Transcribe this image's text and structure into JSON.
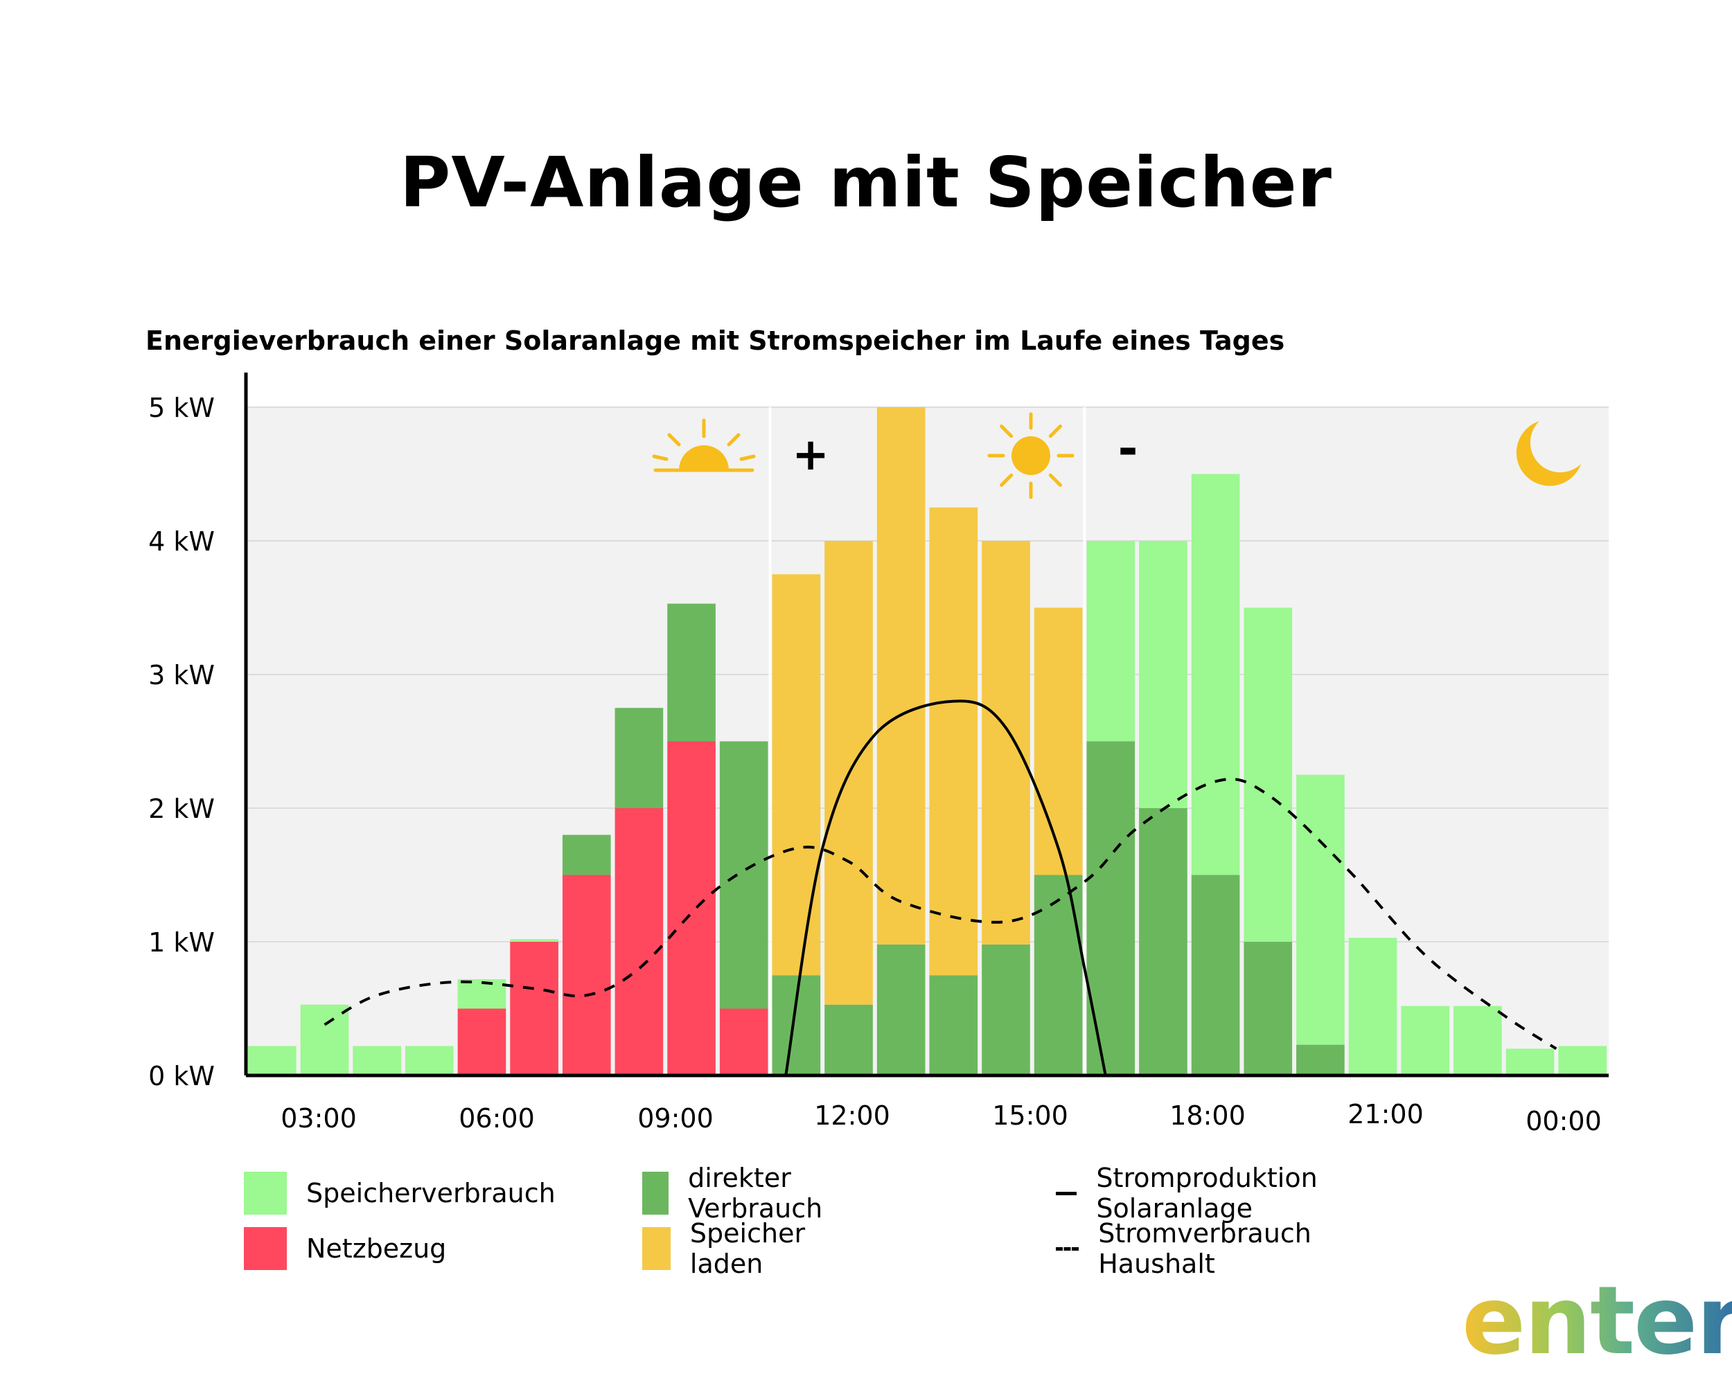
{
  "title": "PV-Anlage mit Speicher",
  "subtitle": "Energieverbrauch einer Solaranlage mit Stromspeicher im Laufe eines Tages",
  "colors": {
    "speicherverbrauch": "#9cf891",
    "netzbezug": "#ff485e",
    "direkter_verbrauch": "#6bb75e",
    "speicher_laden": "#f5c946",
    "plot_bg": "#f2f2f2",
    "icon": "#f6bd1c"
  },
  "icons": [
    "sunrise-icon",
    "sun-icon",
    "moon-icon"
  ],
  "markers": {
    "plus": "+",
    "minus": "-"
  },
  "chart_data": {
    "type": "bar",
    "stacked": true,
    "y_ticks": [
      "0 kW",
      "1 kW",
      "2 kW",
      "3 kW",
      "4 kW",
      "5 kW"
    ],
    "ylim": [
      0,
      5
    ],
    "x_ticks": [
      "03:00",
      "06:00",
      "09:00",
      "12:00",
      "15:00",
      "18:00",
      "21:00",
      "00:00"
    ],
    "bar_count": 26,
    "series": [
      {
        "name": "Netzbezug",
        "key": "netzbezug",
        "values": [
          0,
          0,
          0,
          0,
          0.5,
          1.0,
          1.5,
          2.0,
          2.5,
          0.5,
          0,
          0,
          0,
          0,
          0,
          0,
          0,
          0,
          0,
          0,
          0,
          0,
          0,
          0,
          0,
          0
        ]
      },
      {
        "name": "direkter Verbrauch",
        "key": "direkter_verbrauch",
        "values": [
          0,
          0,
          0,
          0,
          0,
          0,
          0.3,
          0.75,
          1.03,
          2.0,
          0.75,
          0.53,
          0.98,
          0.75,
          0.98,
          1.5,
          2.5,
          2.0,
          1.5,
          1.0,
          0.23,
          0,
          0,
          0,
          0,
          0
        ]
      },
      {
        "name": "Speicher laden",
        "key": "speicher_laden",
        "values": [
          0,
          0,
          0,
          0,
          0,
          0,
          0,
          0,
          0,
          0,
          3.0,
          3.47,
          4.02,
          3.5,
          3.02,
          2.0,
          0,
          0,
          0,
          0,
          0,
          0,
          0,
          0,
          0,
          0
        ]
      },
      {
        "name": "Speicherverbrauch",
        "key": "speicherverbrauch",
        "values": [
          0.22,
          0.53,
          0.22,
          0.22,
          0.22,
          0.02,
          0,
          0,
          0,
          0,
          0,
          0,
          0,
          0,
          0,
          0,
          1.5,
          2.0,
          3.0,
          2.5,
          2.02,
          1.03,
          0.52,
          0.52,
          0.2,
          0.22
        ]
      }
    ],
    "lines": [
      {
        "name": "Stromproduktion Solaranlage",
        "style": "solid",
        "points": [
          [
            10.3,
            0
          ],
          [
            11.0,
            1.7
          ],
          [
            12.0,
            2.55
          ],
          [
            13.5,
            2.8
          ],
          [
            14.5,
            2.6
          ],
          [
            15.5,
            1.7
          ],
          [
            16.0,
            0.8
          ],
          [
            16.4,
            0
          ]
        ]
      },
      {
        "name": "Stromverbrauch Haushalt",
        "style": "dashed",
        "points": [
          [
            1.5,
            0.38
          ],
          [
            2.5,
            0.6
          ],
          [
            4.0,
            0.7
          ],
          [
            5.5,
            0.65
          ],
          [
            6.5,
            0.6
          ],
          [
            7.5,
            0.8
          ],
          [
            9.0,
            1.4
          ],
          [
            10.5,
            1.7
          ],
          [
            11.5,
            1.6
          ],
          [
            12.5,
            1.3
          ],
          [
            14.5,
            1.15
          ],
          [
            16.0,
            1.45
          ],
          [
            17.0,
            1.85
          ],
          [
            18.5,
            2.2
          ],
          [
            19.5,
            2.1
          ],
          [
            21.0,
            1.55
          ],
          [
            22.5,
            0.9
          ],
          [
            24.0,
            0.45
          ],
          [
            25.0,
            0.2
          ]
        ]
      }
    ],
    "legend": [
      {
        "label": "Speicherverbrauch",
        "type": "box",
        "key": "speicherverbrauch"
      },
      {
        "label": "direkter Verbrauch",
        "type": "box",
        "key": "direkter_verbrauch"
      },
      {
        "label": "Stromproduktion Solaranlage",
        "type": "solid"
      },
      {
        "label": "Netzbezug",
        "type": "box",
        "key": "netzbezug"
      },
      {
        "label": "Speicher laden",
        "type": "box",
        "key": "speicher_laden"
      },
      {
        "label": "Stromverbrauch Haushalt",
        "type": "dashed"
      }
    ],
    "grid": true,
    "legend_position": "bottom"
  },
  "logo": "enter"
}
